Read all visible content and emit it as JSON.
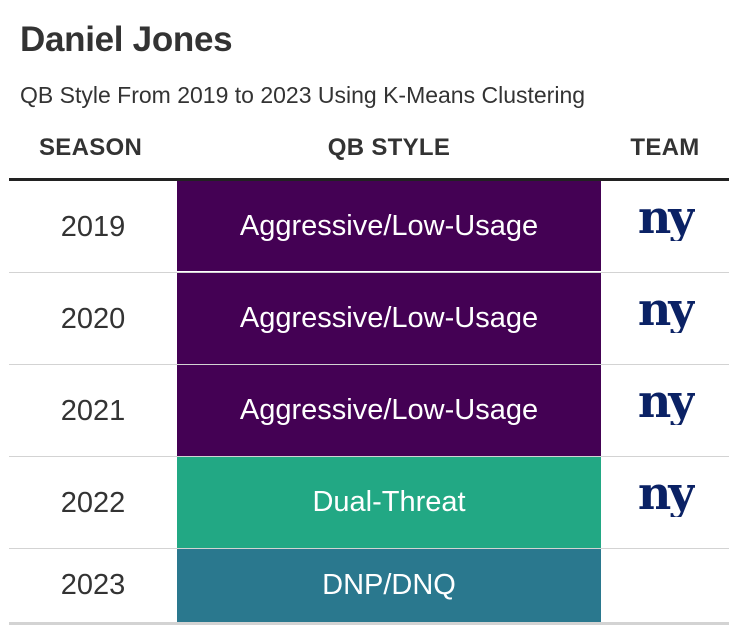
{
  "title": "Daniel Jones",
  "subtitle": "QB Style From 2019 to 2023 Using K-Means Clustering",
  "headers": {
    "season": "SEASON",
    "style": "QB STYLE",
    "team": "TEAM"
  },
  "colors": {
    "aggressive_low_usage": "#440154",
    "dual_threat": "#22a884",
    "dnp_dnq": "#2a788e",
    "giants_blue": "#0b2265"
  },
  "rows": [
    {
      "season": "2019",
      "style": "Aggressive/Low-Usage",
      "color": "#440154",
      "team_icon": "ny-giants-logo"
    },
    {
      "season": "2020",
      "style": "Aggressive/Low-Usage",
      "color": "#440154",
      "team_icon": "ny-giants-logo"
    },
    {
      "season": "2021",
      "style": "Aggressive/Low-Usage",
      "color": "#440154",
      "team_icon": "ny-giants-logo"
    },
    {
      "season": "2022",
      "style": "Dual-Threat",
      "color": "#22a884",
      "team_icon": "ny-giants-logo"
    },
    {
      "season": "2023",
      "style": "DNP/DNQ",
      "color": "#2a788e",
      "team_icon": ""
    }
  ]
}
